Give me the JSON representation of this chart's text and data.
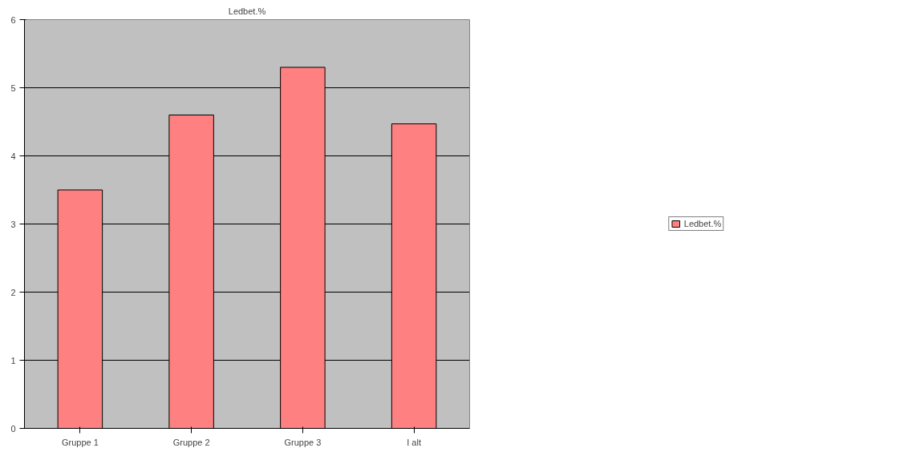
{
  "chart_data": {
    "type": "bar",
    "title": "Ledbet.%",
    "categories": [
      "Gruppe 1",
      "Gruppe 2",
      "Gruppe 3",
      "I alt"
    ],
    "series": [
      {
        "name": "Ledbet.%",
        "color": "#ff8080",
        "values": [
          3.5,
          4.6,
          5.3,
          4.47
        ]
      }
    ],
    "ylim": [
      0,
      6
    ],
    "yticks": [
      0,
      1,
      2,
      3,
      4,
      5,
      6
    ],
    "grid": "y",
    "legend": "right"
  }
}
